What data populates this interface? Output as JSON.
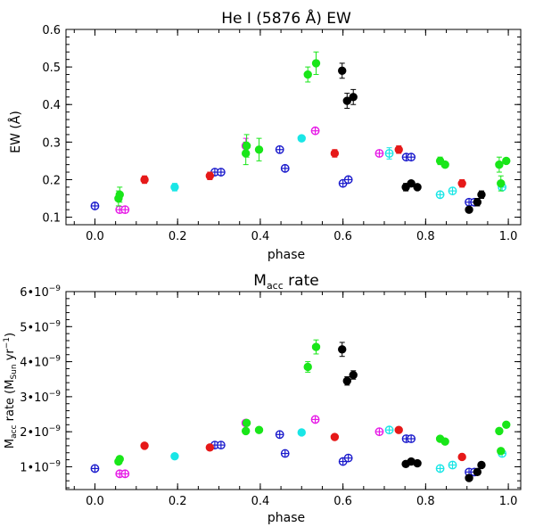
{
  "chart_data": [
    {
      "type": "scatter",
      "title": "He I (5876 Å) EW",
      "xlabel": "phase",
      "ylabel": "EW (Å)",
      "xlim": [
        -0.07,
        1.03
      ],
      "ylim": [
        0.08,
        0.6
      ],
      "xticks": [
        0.0,
        0.2,
        0.4,
        0.6,
        0.8,
        1.0
      ],
      "xtick_labels": [
        "0.0",
        "0.2",
        "0.4",
        "0.6",
        "0.8",
        "1.0"
      ],
      "yticks": [
        0.1,
        0.2,
        0.3,
        0.4,
        0.5,
        0.6
      ],
      "ytick_labels": [
        "0.1",
        "0.2",
        "0.3",
        "0.4",
        "0.5",
        "0.6"
      ],
      "series": [
        {
          "name": "blue open",
          "color": "#1a1acc",
          "marker": "open-cross",
          "points": [
            [
              0.0,
              0.13,
              0
            ],
            [
              0.29,
              0.22,
              0
            ],
            [
              0.305,
              0.22,
              0
            ],
            [
              0.447,
              0.28,
              0
            ],
            [
              0.46,
              0.23,
              0
            ],
            [
              0.6,
              0.19,
              0
            ],
            [
              0.613,
              0.2,
              0
            ],
            [
              0.753,
              0.26,
              0
            ],
            [
              0.765,
              0.26,
              0
            ],
            [
              0.905,
              0.14,
              0
            ],
            [
              0.918,
              0.14,
              0
            ]
          ]
        },
        {
          "name": "magenta open",
          "color": "#e619e6",
          "marker": "open-cross",
          "points": [
            [
              0.06,
              0.12,
              0
            ],
            [
              0.073,
              0.12,
              0
            ],
            [
              0.365,
              0.29,
              0.02
            ],
            [
              0.533,
              0.33,
              0
            ],
            [
              0.688,
              0.27,
              0
            ]
          ]
        },
        {
          "name": "cyan open",
          "color": "#19e6e6",
          "marker": "open-cross",
          "points": [
            [
              0.712,
              0.27,
              0.015
            ],
            [
              0.835,
              0.16,
              0
            ],
            [
              0.865,
              0.17,
              0
            ],
            [
              0.985,
              0.18,
              0
            ]
          ]
        },
        {
          "name": "green filled",
          "color": "#19e619",
          "marker": "filled",
          "points": [
            [
              0.057,
              0.15,
              0.02
            ],
            [
              0.06,
              0.16,
              0.02
            ],
            [
              0.365,
              0.27,
              0.03
            ],
            [
              0.367,
              0.29,
              0.03
            ],
            [
              0.397,
              0.28,
              0.03
            ],
            [
              0.515,
              0.48,
              0.02
            ],
            [
              0.535,
              0.51,
              0.03
            ],
            [
              0.835,
              0.25,
              0.01
            ],
            [
              0.847,
              0.24,
              0
            ],
            [
              0.978,
              0.24,
              0.02
            ],
            [
              0.982,
              0.19,
              0.02
            ],
            [
              0.995,
              0.25,
              0
            ]
          ]
        },
        {
          "name": "red filled",
          "color": "#e61919",
          "marker": "filled",
          "points": [
            [
              0.12,
              0.2,
              0.01
            ],
            [
              0.278,
              0.21,
              0.01
            ],
            [
              0.58,
              0.27,
              0.01
            ],
            [
              0.735,
              0.28,
              0.01
            ],
            [
              0.888,
              0.19,
              0.01
            ]
          ]
        },
        {
          "name": "cyan filled",
          "color": "#19e6e6",
          "marker": "filled",
          "points": [
            [
              0.193,
              0.18,
              0.01
            ],
            [
              0.5,
              0.31,
              0
            ]
          ]
        },
        {
          "name": "black filled",
          "color": "#000000",
          "marker": "filled",
          "points": [
            [
              0.598,
              0.49,
              0.02
            ],
            [
              0.61,
              0.41,
              0.02
            ],
            [
              0.625,
              0.42,
              0.02
            ],
            [
              0.752,
              0.18,
              0.01
            ],
            [
              0.765,
              0.19,
              0
            ],
            [
              0.78,
              0.18,
              0
            ],
            [
              0.905,
              0.12,
              0
            ],
            [
              0.925,
              0.14,
              0.01
            ],
            [
              0.935,
              0.16,
              0.01
            ]
          ]
        }
      ]
    },
    {
      "type": "scatter",
      "title_main": "M",
      "title_sub": "acc",
      "title_rest": " rate",
      "xlabel": "phase",
      "ylabel_main": "M",
      "ylabel_sub": "acc",
      "ylabel_mid": " rate (M",
      "ylabel_sub2": "Sun",
      "ylabel_mid2": " yr",
      "ylabel_sup": "−1",
      "ylabel_end": ")",
      "xlim": [
        -0.07,
        1.03
      ],
      "ylim": [
        3.5e-10,
        6e-09
      ],
      "xticks": [
        0.0,
        0.2,
        0.4,
        0.6,
        0.8,
        1.0
      ],
      "xtick_labels": [
        "0.0",
        "0.2",
        "0.4",
        "0.6",
        "0.8",
        "1.0"
      ],
      "yticks": [
        1e-09,
        2e-09,
        3e-09,
        4e-09,
        5e-09,
        6e-09
      ],
      "ytick_mantissa": [
        "1",
        "2",
        "3",
        "4",
        "5",
        "6"
      ],
      "ytick_base": "•10",
      "ytick_exp": "−9",
      "series": [
        {
          "name": "blue open",
          "color": "#1a1acc",
          "marker": "open-cross",
          "points": [
            [
              0.0,
              9.5e-10,
              0
            ],
            [
              0.29,
              1.62e-09,
              0
            ],
            [
              0.305,
              1.62e-09,
              0
            ],
            [
              0.447,
              1.92e-09,
              0
            ],
            [
              0.46,
              1.38e-09,
              0
            ],
            [
              0.6,
              1.15e-09,
              0
            ],
            [
              0.613,
              1.25e-09,
              0
            ],
            [
              0.753,
              1.8e-09,
              0
            ],
            [
              0.765,
              1.8e-09,
              0
            ],
            [
              0.905,
              8.5e-10,
              0
            ],
            [
              0.918,
              8.5e-10,
              0
            ]
          ]
        },
        {
          "name": "magenta open",
          "color": "#e619e6",
          "marker": "open-cross",
          "points": [
            [
              0.06,
              8e-10,
              0
            ],
            [
              0.073,
              8e-10,
              0
            ],
            [
              0.365,
              2.25e-09,
              0
            ],
            [
              0.533,
              2.35e-09,
              0
            ],
            [
              0.688,
              2e-09,
              0
            ]
          ]
        },
        {
          "name": "cyan open",
          "color": "#19e6e6",
          "marker": "open-cross",
          "points": [
            [
              0.712,
              2.05e-09,
              0
            ],
            [
              0.835,
              9.5e-10,
              0
            ],
            [
              0.865,
              1.05e-09,
              0
            ],
            [
              0.985,
              1.38e-09,
              0
            ]
          ]
        },
        {
          "name": "green filled",
          "color": "#19e619",
          "marker": "filled",
          "points": [
            [
              0.057,
              1.15e-09,
              0
            ],
            [
              0.06,
              1.22e-09,
              0
            ],
            [
              0.365,
              2.02e-09,
              0
            ],
            [
              0.367,
              2.25e-09,
              0
            ],
            [
              0.397,
              2.05e-09,
              0
            ],
            [
              0.515,
              3.85e-09,
              1.5e-10
            ],
            [
              0.535,
              4.42e-09,
              2e-10
            ],
            [
              0.835,
              1.8e-09,
              0
            ],
            [
              0.847,
              1.72e-09,
              0
            ],
            [
              0.978,
              2.02e-09,
              0
            ],
            [
              0.982,
              1.45e-09,
              0
            ],
            [
              0.995,
              2.2e-09,
              0
            ]
          ]
        },
        {
          "name": "red filled",
          "color": "#e61919",
          "marker": "filled",
          "points": [
            [
              0.12,
              1.6e-09,
              0
            ],
            [
              0.278,
              1.55e-09,
              0
            ],
            [
              0.58,
              1.85e-09,
              0
            ],
            [
              0.735,
              2.05e-09,
              0
            ],
            [
              0.888,
              1.28e-09,
              0
            ]
          ]
        },
        {
          "name": "cyan filled",
          "color": "#19e6e6",
          "marker": "filled",
          "points": [
            [
              0.193,
              1.3e-09,
              0
            ],
            [
              0.5,
              1.98e-09,
              0
            ]
          ]
        },
        {
          "name": "black filled",
          "color": "#000000",
          "marker": "filled",
          "points": [
            [
              0.598,
              4.35e-09,
              2e-10
            ],
            [
              0.61,
              3.45e-09,
              1.2e-10
            ],
            [
              0.625,
              3.62e-09,
              1.2e-10
            ],
            [
              0.752,
              1.08e-09,
              0
            ],
            [
              0.765,
              1.15e-09,
              0
            ],
            [
              0.78,
              1.1e-09,
              0
            ],
            [
              0.905,
              6.8e-10,
              0
            ],
            [
              0.925,
              8.5e-10,
              0
            ],
            [
              0.935,
              1.05e-09,
              0
            ]
          ]
        }
      ]
    }
  ]
}
